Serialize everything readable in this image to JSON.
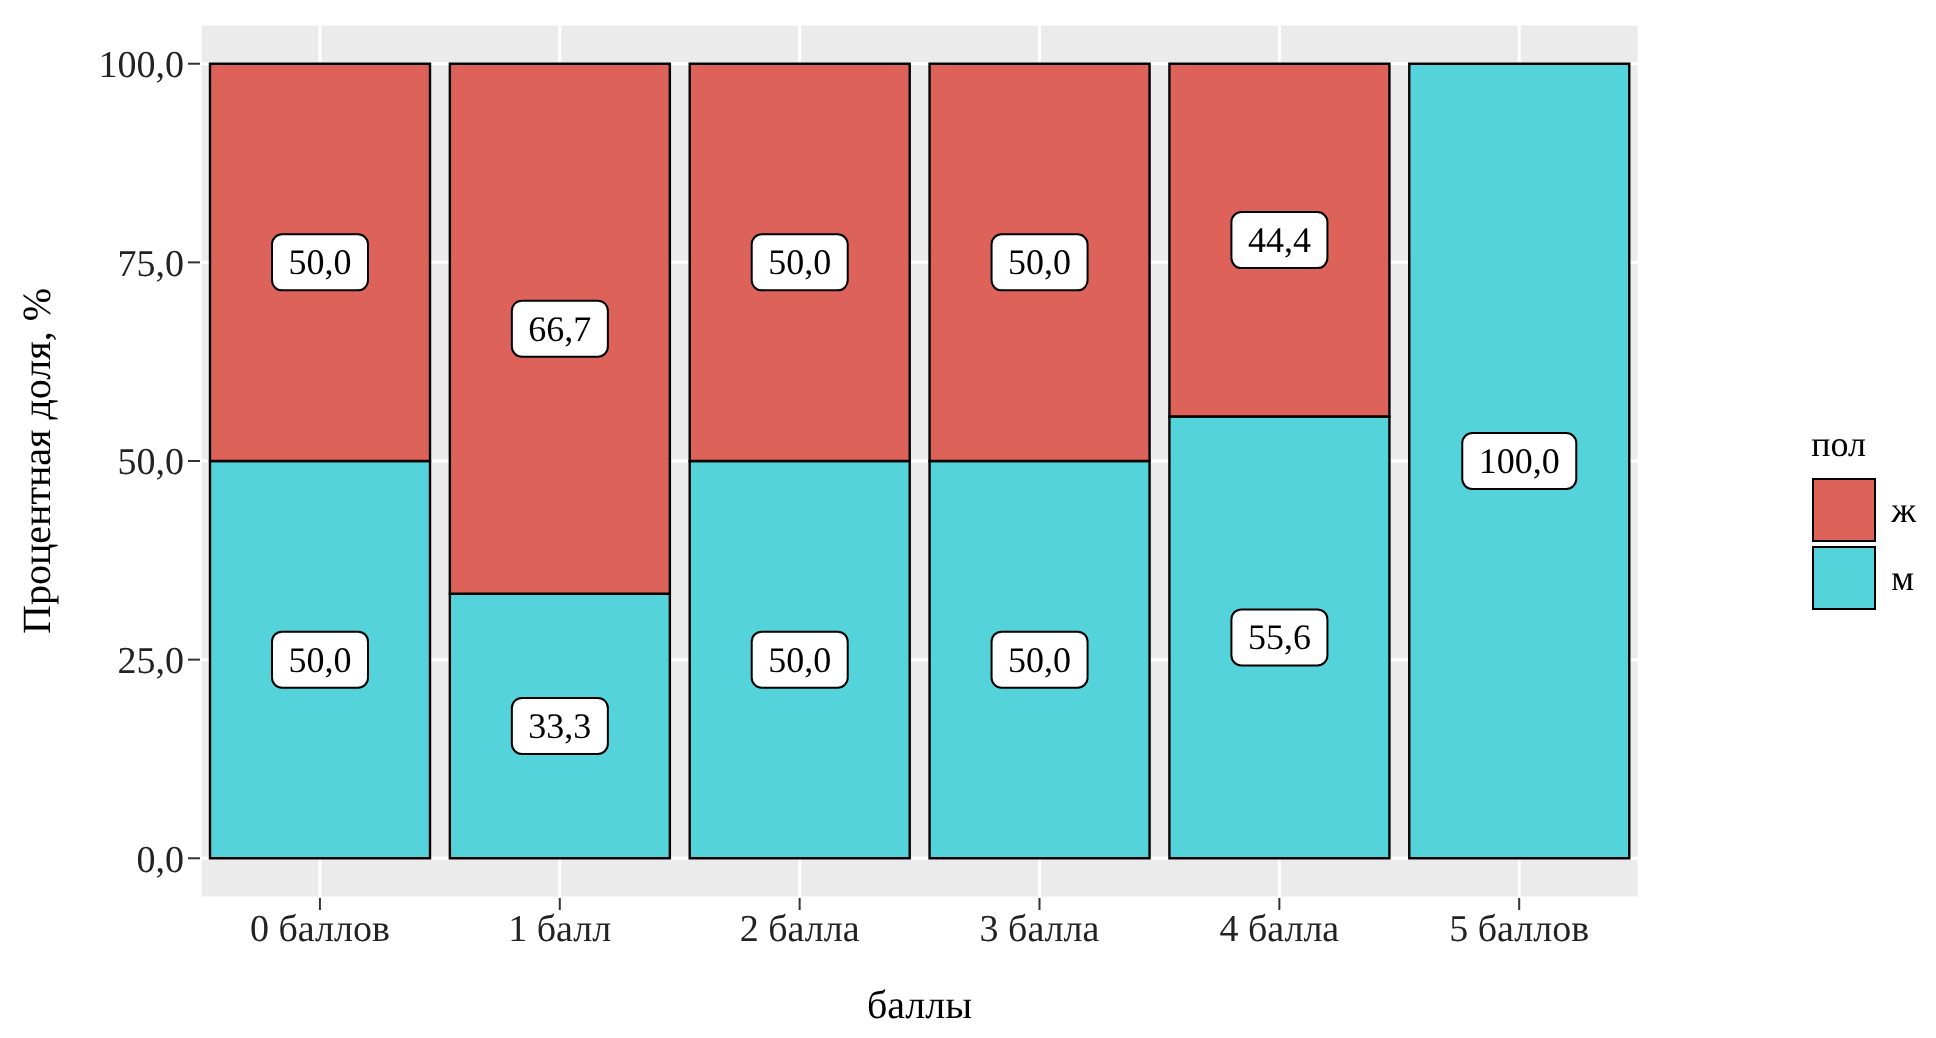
{
  "chart_data": {
    "type": "bar",
    "stacked": true,
    "xlabel": "баллы",
    "ylabel": "Процентная доля, %",
    "legend_title": "пол",
    "legend": "right",
    "grid": true,
    "categories": [
      "0 баллов",
      "1 балл",
      "2 балла",
      "3 балла",
      "4 балла",
      "5 баллов"
    ],
    "series": [
      {
        "name": "м",
        "color": "#55d3db",
        "values": [
          50.0,
          33.3,
          50.0,
          50.0,
          55.6,
          100.0
        ],
        "value_labels": [
          "50,0",
          "33,3",
          "50,0",
          "50,0",
          "55,6",
          "100,0"
        ]
      },
      {
        "name": "ж",
        "color": "#dc625a",
        "values": [
          50.0,
          66.7,
          50.0,
          50.0,
          44.4,
          0
        ],
        "value_labels": [
          "50,0",
          "66,7",
          "50,0",
          "50,0",
          "44,4",
          null
        ]
      }
    ],
    "ylim": [
      -5,
      105
    ],
    "yticks": [
      {
        "value": 0,
        "label": "0,0"
      },
      {
        "value": 25,
        "label": "25,0"
      },
      {
        "value": 50,
        "label": "50,0"
      },
      {
        "value": 75,
        "label": "75,0"
      },
      {
        "value": 100,
        "label": "100,0"
      }
    ]
  }
}
